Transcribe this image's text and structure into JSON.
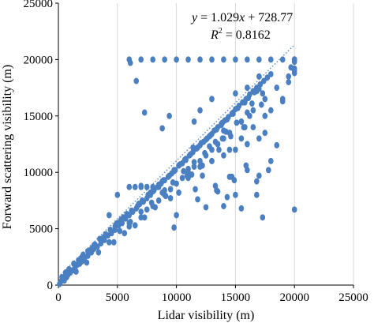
{
  "chart_data": {
    "type": "scatter",
    "xlabel": "Lidar visibility (m)",
    "ylabel": "Forward scattering visibility (m)",
    "xlim": [
      0,
      25000
    ],
    "ylim": [
      0,
      25000
    ],
    "x_ticks": [
      "0",
      "5000",
      "10000",
      "15000",
      "20000",
      "25000"
    ],
    "y_ticks": [
      "0",
      "5000",
      "10000",
      "15000",
      "20000",
      "25000"
    ],
    "grid": "vertical",
    "annotation": {
      "line1_y": "y",
      "line1_rest": " = 1.029",
      "line1_x": "x",
      "line1_end": " + 728.77",
      "line2_R": "R",
      "line2_sup": "2",
      "line2_rest": " = 0.8162"
    },
    "trendline": {
      "slope": 1.029,
      "intercept": 728.77,
      "x_range": [
        0,
        20000
      ],
      "style": "dotted"
    },
    "marker_color": "#4a7fc1",
    "series": [
      {
        "x": [
          100,
          200,
          300,
          400,
          500,
          600,
          700,
          800,
          900,
          1000,
          1200,
          1400,
          1600,
          1800,
          2000,
          2200,
          2500,
          2800,
          3000,
          3300,
          3600,
          3900,
          4200,
          4500,
          4800,
          5100,
          5400,
          5700,
          6000,
          6300,
          6600,
          6900,
          7200,
          7500,
          7800,
          8100,
          8400,
          8700,
          9000,
          9300,
          9600,
          9900,
          10200,
          10500,
          10800,
          11100,
          11400,
          11700,
          12000,
          12300,
          12600,
          12900,
          13200,
          13500,
          13800,
          14100,
          14400,
          14700,
          15000,
          15300,
          15600,
          15900,
          16200,
          16500,
          16800,
          17100,
          17400,
          17700,
          18000,
          300,
          600,
          900,
          1300,
          1700,
          2100,
          2600,
          3100,
          3500,
          4000,
          4400,
          4900,
          5300,
          5800,
          6200,
          6700,
          7100,
          7600,
          8000,
          8500,
          8900,
          9400,
          9800,
          10300,
          10700,
          11200,
          11600,
          12100,
          12500,
          13000,
          13400,
          13900,
          14300,
          14800,
          15200,
          15700,
          16100,
          16600,
          17000,
          500,
          1500,
          2400,
          3400,
          4300,
          5200,
          6100,
          7000,
          7900,
          8800,
          9700,
          10600,
          11500,
          12400,
          13300,
          14200,
          15100,
          16000,
          700,
          4700,
          5600,
          6500,
          7300,
          8200,
          9100,
          11300,
          12200,
          13600,
          14600,
          900,
          6000,
          7500,
          9000,
          11000,
          12800,
          14000,
          16400,
          17300,
          6000,
          7000,
          8000,
          9000,
          10000,
          11000,
          12000,
          13000,
          14000,
          15000,
          16000,
          17000,
          18000,
          19000,
          20000,
          6000,
          6500,
          7000,
          7500,
          8000,
          8500,
          2000,
          2500,
          3000,
          4000,
          5000,
          5500,
          6000,
          7000,
          8000,
          9000,
          10000,
          11000,
          12000,
          13000,
          13500,
          14000,
          14500,
          15500,
          16500,
          17500,
          18500,
          19500,
          20000,
          800,
          1800,
          2800,
          3800,
          4800,
          5800,
          6800,
          7800,
          8800,
          9800,
          10800,
          11800,
          12800,
          13800,
          14800,
          15800,
          16800,
          11000,
          12000,
          13000,
          14000,
          15000,
          16000,
          17000,
          17500,
          18000,
          19000,
          20000,
          8500,
          9500,
          10500,
          11500,
          12500,
          13500,
          14500,
          15500,
          16200,
          15800,
          17200,
          11500,
          12000,
          13000,
          15000,
          16000,
          17000,
          13000,
          14500,
          15500,
          16500,
          17500,
          12500,
          13500,
          14000,
          14500,
          15000,
          16000,
          17000,
          18000,
          18500,
          19000,
          19500,
          20000,
          20000,
          20000,
          20000,
          20000,
          20000,
          20000,
          6100,
          6600,
          7300,
          8800,
          9400,
          13900,
          15500,
          16800,
          17800,
          16800,
          17300,
          19700,
          20000,
          4300,
          5000,
          9500,
          10000,
          11400,
          12200,
          13300,
          14300,
          14900,
          15700,
          7000,
          9800,
          11800,
          13400,
          14700,
          15900,
          10200,
          10900,
          11600
        ],
        "y": [
          100,
          300,
          400,
          600,
          600,
          800,
          700,
          900,
          1200,
          1100,
          1300,
          1500,
          1800,
          1900,
          2100,
          2400,
          2600,
          2900,
          3200,
          3400,
          3700,
          4000,
          4400,
          4600,
          4900,
          5300,
          5500,
          5900,
          6200,
          6500,
          6800,
          7200,
          7400,
          7700,
          8000,
          8400,
          8700,
          9000,
          9300,
          9600,
          9900,
          10200,
          10600,
          10800,
          11100,
          11500,
          11800,
          12100,
          12400,
          12700,
          13000,
          13300,
          13700,
          14000,
          14300,
          14600,
          14900,
          15200,
          15600,
          15900,
          16200,
          16500,
          16900,
          17200,
          17500,
          17800,
          18100,
          18400,
          18700,
          700,
          1100,
          1400,
          1900,
          2200,
          2700,
          3000,
          3600,
          4100,
          4500,
          4900,
          5400,
          5800,
          6300,
          6600,
          7000,
          7500,
          8000,
          8300,
          8900,
          9300,
          9700,
          10100,
          10700,
          11100,
          11600,
          12100,
          12600,
          12900,
          13400,
          13800,
          14400,
          14700,
          15300,
          15700,
          16200,
          16600,
          17100,
          17400,
          400,
          1200,
          2000,
          2900,
          3800,
          4800,
          5600,
          6500,
          7300,
          8200,
          9100,
          10100,
          10900,
          11700,
          12700,
          13600,
          14400,
          15300,
          900,
          3800,
          4600,
          5300,
          6000,
          6900,
          7900,
          9800,
          10600,
          12000,
          13200,
          1400,
          5200,
          6700,
          8400,
          10300,
          12300,
          13700,
          16100,
          17000,
          20000,
          20000,
          20000,
          20000,
          20000,
          20000,
          20000,
          20000,
          20000,
          20000,
          20000,
          20000,
          20000,
          20000,
          20000,
          8700,
          8700,
          8700,
          8700,
          8700,
          8700,
          2500,
          3000,
          3500,
          4500,
          5500,
          6000,
          5500,
          6000,
          7000,
          8000,
          9000,
          10000,
          11000,
          12000,
          12500,
          13000,
          13500,
          14500,
          15500,
          16500,
          17500,
          18500,
          19200,
          1200,
          2200,
          3200,
          4200,
          5200,
          6200,
          7200,
          8200,
          9200,
          10200,
          11200,
          12200,
          13200,
          14200,
          15200,
          16200,
          17200,
          9500,
          10500,
          11000,
          11500,
          12000,
          12500,
          13000,
          13500,
          15500,
          16500,
          18800,
          7500,
          8500,
          9500,
          10500,
          11500,
          12500,
          13500,
          14500,
          15000,
          14000,
          16000,
          14500,
          15500,
          16500,
          17000,
          17500,
          18500,
          11000,
          12000,
          13000,
          14000,
          15000,
          6900,
          8300,
          7000,
          9600,
          8000,
          10200,
          9700,
          11000,
          12400,
          16300,
          18000,
          6700,
          19800,
          20000,
          20000,
          20000,
          20000,
          20000,
          19700,
          18100,
          15300,
          13900,
          15000,
          13000,
          6800,
          9200,
          10200,
          8000,
          6000,
          19300,
          19000,
          6200,
          8000,
          7700,
          6200,
          12200,
          9700,
          8800,
          7800,
          9300,
          14000,
          8800,
          5100,
          7600,
          8400,
          9600,
          10600,
          8200,
          9700,
          8500
        ]
      }
    ]
  }
}
